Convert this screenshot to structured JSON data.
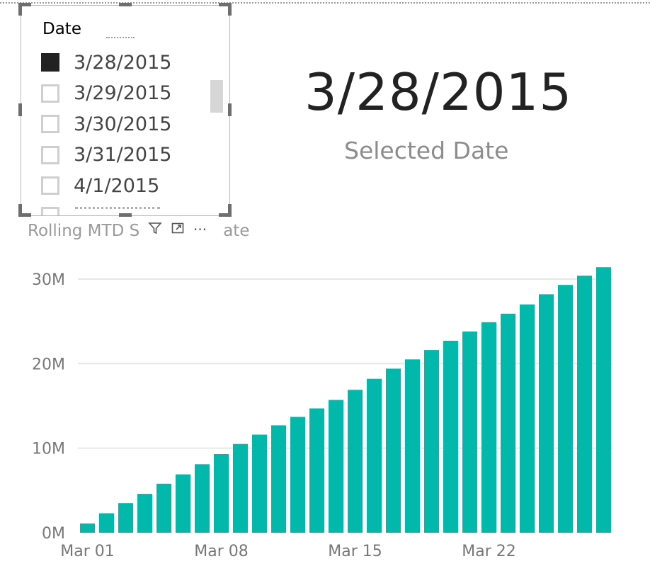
{
  "slicer": {
    "title": "Date",
    "items": [
      {
        "label": "3/28/2015",
        "checked": true
      },
      {
        "label": "3/29/2015",
        "checked": false
      },
      {
        "label": "3/30/2015",
        "checked": false
      },
      {
        "label": "3/31/2015",
        "checked": false
      },
      {
        "label": "4/1/2015",
        "checked": false
      }
    ]
  },
  "card": {
    "value": "3/28/2015",
    "label": "Selected Date"
  },
  "chart_toolbar": {
    "filter_icon": "filter-icon",
    "focus_icon": "focus-mode-icon",
    "more_label": "···"
  },
  "chart_data": {
    "type": "bar",
    "title": "Rolling MTD Sales by Date",
    "title_visible": "Rolling MTD S",
    "title_tail_visible": "ate",
    "xlabel": "",
    "ylabel": "",
    "ylim": [
      0,
      32000000
    ],
    "y_ticks": [
      "0M",
      "10M",
      "20M",
      "30M"
    ],
    "y_tick_values": [
      0,
      10000000,
      20000000,
      30000000
    ],
    "x_tick_labels": [
      "Mar 01",
      "Mar 08",
      "Mar 15",
      "Mar 22"
    ],
    "x_tick_indices": [
      0,
      7,
      14,
      21
    ],
    "categories": [
      "Mar 01",
      "Mar 02",
      "Mar 03",
      "Mar 04",
      "Mar 05",
      "Mar 06",
      "Mar 07",
      "Mar 08",
      "Mar 09",
      "Mar 10",
      "Mar 11",
      "Mar 12",
      "Mar 13",
      "Mar 14",
      "Mar 15",
      "Mar 16",
      "Mar 17",
      "Mar 18",
      "Mar 19",
      "Mar 20",
      "Mar 21",
      "Mar 22",
      "Mar 23",
      "Mar 24",
      "Mar 25",
      "Mar 26",
      "Mar 27",
      "Mar 28"
    ],
    "values": [
      1100000,
      2300000,
      3500000,
      4600000,
      5800000,
      6900000,
      8100000,
      9300000,
      10500000,
      11600000,
      12700000,
      13700000,
      14700000,
      15700000,
      16900000,
      18200000,
      19400000,
      20500000,
      21600000,
      22700000,
      23800000,
      24900000,
      25900000,
      27000000,
      28200000,
      29300000,
      30400000,
      31400000
    ],
    "bar_color": "#01b8aa",
    "grid": true,
    "legend": "none"
  }
}
